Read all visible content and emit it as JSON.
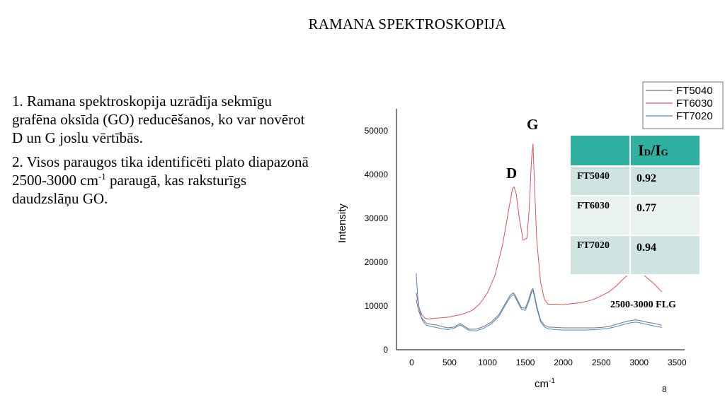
{
  "title": "RAMANA SPEKTROSKOPIJA",
  "paragraphs": {
    "p1": "1. Ramana spektroskopija uzrādīja sekmīgu grafēna oksīda (GO) reducēšanos, ko var novērot D un G joslu vērtībās.",
    "p2_before_sup": "2. Visos paraugos tika identificēti plato diapazonā 2500-3000 cm",
    "p2_sup": "-1",
    "p2_after_sup": " paraugā, kas raksturīgs daudzslāņu GO."
  },
  "colors": {
    "FT5040": "#6e7579",
    "FT6030": "#e8504f",
    "FT7020": "#4a86d4",
    "table_header": "#2fb0a1",
    "table_row_dark": "#cfe4e0",
    "table_row_light": "#e9f2f0"
  },
  "chart_data": {
    "type": "line",
    "ylabel": "Intensity",
    "xlabel_base": "cm",
    "xlabel_sup": "-1",
    "xlim": [
      -200,
      3600
    ],
    "ylim": [
      0,
      55000
    ],
    "x_ticks": [
      "0",
      "500",
      "1000",
      "1500",
      "2000",
      "2500",
      "3000",
      "3500"
    ],
    "x_tick_values": [
      0,
      500,
      1000,
      1500,
      2000,
      2500,
      3000,
      3500
    ],
    "y_ticks": [
      "0",
      "10000",
      "20000",
      "30000",
      "40000",
      "50000"
    ],
    "y_tick_values": [
      0,
      10000,
      20000,
      30000,
      40000,
      50000
    ],
    "legend": [
      "FT5040",
      "FT6030",
      "FT7020"
    ],
    "legend_position": "top-right",
    "annotations": {
      "D": "D",
      "G": "G",
      "flg": "2500-3000 FLG"
    },
    "series": [
      {
        "name": "FT5040",
        "x": [
          60,
          90,
          120,
          160,
          200,
          260,
          320,
          400,
          480,
          560,
          640,
          700,
          760,
          850,
          950,
          1050,
          1150,
          1250,
          1300,
          1340,
          1360,
          1400,
          1450,
          1500,
          1550,
          1580,
          1600,
          1620,
          1650,
          1700,
          1750,
          1800,
          1900,
          2000,
          2100,
          2200,
          2300,
          2400,
          2500,
          2600,
          2700,
          2800,
          2900,
          2960,
          3000,
          3100,
          3200,
          3300
        ],
        "y": [
          11500,
          9000,
          7600,
          6700,
          6000,
          5800,
          5700,
          5300,
          5000,
          5200,
          6000,
          5300,
          4700,
          4700,
          5300,
          6300,
          8000,
          11000,
          12500,
          13000,
          12600,
          11200,
          9600,
          9500,
          11800,
          13500,
          14000,
          12500,
          10000,
          6800,
          5600,
          5200,
          5100,
          5000,
          5000,
          5000,
          5000,
          5000,
          5100,
          5300,
          5800,
          6300,
          6700,
          6800,
          6700,
          6300,
          6000,
          5600
        ]
      },
      {
        "name": "FT6030",
        "x": [
          60,
          100,
          140,
          180,
          220,
          300,
          400,
          500,
          580,
          640,
          700,
          800,
          900,
          1000,
          1100,
          1200,
          1260,
          1300,
          1330,
          1350,
          1380,
          1420,
          1470,
          1520,
          1550,
          1580,
          1600,
          1620,
          1650,
          1700,
          1750,
          1800,
          1900,
          2000,
          2100,
          2200,
          2300,
          2400,
          2500,
          2600,
          2700,
          2800,
          2900,
          2950,
          3000,
          3100,
          3200,
          3300
        ],
        "y": [
          13000,
          9500,
          7800,
          7200,
          7000,
          7200,
          7300,
          7500,
          7800,
          8000,
          8300,
          9000,
          10500,
          13000,
          17000,
          24000,
          30000,
          34000,
          36800,
          37200,
          35500,
          30000,
          25000,
          25500,
          32000,
          43000,
          47000,
          38000,
          25000,
          15500,
          11500,
          10400,
          10400,
          10300,
          10500,
          10700,
          11000,
          11500,
          12300,
          13200,
          14600,
          16300,
          17800,
          18300,
          18000,
          16500,
          15000,
          13200
        ]
      },
      {
        "name": "FT7020",
        "x": [
          60,
          80,
          100,
          130,
          160,
          200,
          260,
          320,
          400,
          480,
          560,
          640,
          700,
          760,
          850,
          950,
          1050,
          1150,
          1250,
          1300,
          1340,
          1360,
          1400,
          1450,
          1500,
          1550,
          1580,
          1600,
          1620,
          1650,
          1700,
          1750,
          1800,
          1900,
          2000,
          2100,
          2200,
          2300,
          2400,
          2500,
          2600,
          2700,
          2800,
          2900,
          2960,
          3000,
          3100,
          3200,
          3300
        ],
        "y": [
          17500,
          12000,
          9500,
          7200,
          6200,
          5600,
          5300,
          5100,
          4800,
          4600,
          4900,
          5700,
          5000,
          4400,
          4300,
          4900,
          5900,
          7600,
          10600,
          12000,
          12600,
          12200,
          10800,
          9200,
          9000,
          11200,
          13000,
          13600,
          12000,
          9500,
          6400,
          5200,
          4800,
          4600,
          4500,
          4500,
          4500,
          4500,
          4600,
          4700,
          4900,
          5300,
          5800,
          6200,
          6300,
          6200,
          5800,
          5400,
          5100
        ]
      }
    ]
  },
  "table": {
    "header_left": "",
    "header_main": "I",
    "header_sub1": "D",
    "header_slash": "/I",
    "header_sub2": "G",
    "rows": [
      {
        "sample": "FT5040",
        "value": "0.92"
      },
      {
        "sample": "FT6030",
        "value": "0.77"
      },
      {
        "sample": "FT7020",
        "value": "0.94"
      }
    ]
  },
  "page_number": "8"
}
